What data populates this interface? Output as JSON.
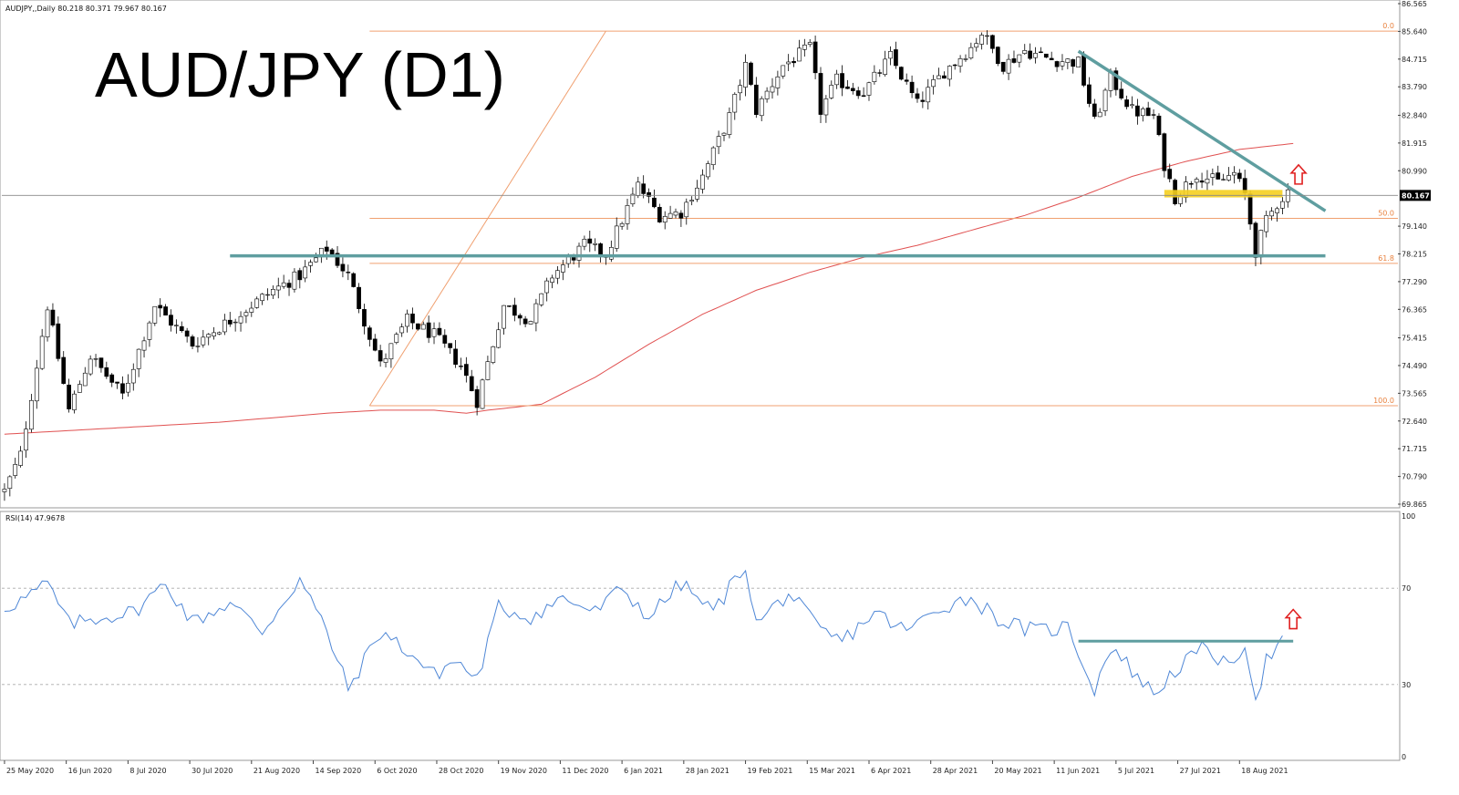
{
  "header": {
    "symbol_line": "AUDJPY,,Daily  80.218 80.371 79.967 80.167",
    "title": "AUD/JPY (D1)",
    "rsi_label": "RSI(14) 47.9678"
  },
  "colors": {
    "up_arrow": "#e02020",
    "trendline": "#5f9ea0",
    "fib": "#f0a070",
    "ma": "#e05050",
    "rsi": "#4f87d6",
    "highlight": "#f5cf1f"
  },
  "chart_data": [
    {
      "type": "candlestick",
      "title": "AUD/JPY (D1)",
      "x_labels": [
        "25 May 2020",
        "16 Jun 2020",
        "8 Jul 2020",
        "30 Jul 2020",
        "21 Aug 2020",
        "14 Sep 2020",
        "6 Oct 2020",
        "28 Oct 2020",
        "19 Nov 2020",
        "11 Dec 2020",
        "6 Jan 2021",
        "28 Jan 2021",
        "19 Feb 2021",
        "15 Mar 2021",
        "6 Apr 2021",
        "28 Apr 2021",
        "20 May 2021",
        "11 Jun 2021",
        "5 Jul 2021",
        "27 Jul 2021",
        "18 Aug 2021"
      ],
      "y_ticks": [
        "86.565",
        "85.640",
        "84.715",
        "83.790",
        "82.840",
        "81.915",
        "80.990",
        "80.167",
        "79.140",
        "78.215",
        "77.290",
        "76.365",
        "75.415",
        "74.490",
        "73.565",
        "72.640",
        "71.715",
        "70.790",
        "69.865"
      ],
      "ylim": [
        69.865,
        86.565
      ],
      "current_price": "80.167",
      "price_path": [
        [
          0,
          70.3
        ],
        [
          3,
          71.5
        ],
        [
          8,
          76.5
        ],
        [
          12,
          73.0
        ],
        [
          16,
          74.8
        ],
        [
          22,
          73.5
        ],
        [
          28,
          76.5
        ],
        [
          35,
          75.2
        ],
        [
          42,
          76.0
        ],
        [
          50,
          77.0
        ],
        [
          55,
          77.5
        ],
        [
          60,
          78.4
        ],
        [
          64,
          77.5
        ],
        [
          70,
          74.5
        ],
        [
          75,
          76.0
        ],
        [
          80,
          75.5
        ],
        [
          85,
          74.5
        ],
        [
          88,
          73.3
        ],
        [
          93,
          76.5
        ],
        [
          98,
          76.0
        ],
        [
          102,
          77.5
        ],
        [
          108,
          78.5
        ],
        [
          112,
          78.2
        ],
        [
          118,
          80.5
        ],
        [
          122,
          79.5
        ],
        [
          126,
          79.6
        ],
        [
          130,
          80.8
        ],
        [
          135,
          82.8
        ],
        [
          138,
          84.5
        ],
        [
          140,
          83.0
        ],
        [
          145,
          84.5
        ],
        [
          150,
          85.1
        ],
        [
          152,
          83.0
        ],
        [
          155,
          84.0
        ],
        [
          160,
          83.6
        ],
        [
          165,
          84.8
        ],
        [
          170,
          83.2
        ],
        [
          175,
          84.3
        ],
        [
          180,
          85.1
        ],
        [
          182,
          85.6
        ],
        [
          186,
          84.5
        ],
        [
          190,
          85.0
        ],
        [
          195,
          84.7
        ],
        [
          200,
          84.6
        ],
        [
          203,
          82.6
        ],
        [
          206,
          84.1
        ],
        [
          210,
          83.0
        ],
        [
          214,
          82.8
        ],
        [
          216,
          81.2
        ],
        [
          218,
          80.1
        ],
        [
          222,
          80.9
        ],
        [
          226,
          80.6
        ],
        [
          229,
          80.9
        ],
        [
          231,
          80.2
        ],
        [
          233,
          78.3
        ],
        [
          235,
          79.3
        ],
        [
          237,
          79.9
        ],
        [
          239,
          80.3
        ]
      ],
      "ma_path": [
        [
          0,
          72.2
        ],
        [
          20,
          72.4
        ],
        [
          40,
          72.6
        ],
        [
          60,
          72.9
        ],
        [
          70,
          73.0
        ],
        [
          80,
          73.0
        ],
        [
          86,
          72.9
        ],
        [
          90,
          73.0
        ],
        [
          100,
          73.2
        ],
        [
          110,
          74.1
        ],
        [
          120,
          75.2
        ],
        [
          130,
          76.2
        ],
        [
          140,
          77.0
        ],
        [
          150,
          77.6
        ],
        [
          160,
          78.1
        ],
        [
          170,
          78.5
        ],
        [
          180,
          79.0
        ],
        [
          190,
          79.5
        ],
        [
          200,
          80.1
        ],
        [
          210,
          80.8
        ],
        [
          220,
          81.3
        ],
        [
          230,
          81.7
        ],
        [
          240,
          81.9
        ]
      ],
      "fib_levels": [
        {
          "label": "0.0",
          "value": 85.65
        },
        {
          "label": "50.0",
          "value": 79.4
        },
        {
          "label": "61.8",
          "value": 77.9
        },
        {
          "label": "100.0",
          "value": 73.15
        }
      ],
      "horizontal_support": 78.15,
      "descending_trendline": [
        [
          84.98,
          200
        ],
        [
          79.65,
          246
        ]
      ],
      "resistance_zone": [
        80.1,
        80.35
      ],
      "up_arrow": "above price near 18 Aug 2021"
    },
    {
      "type": "line",
      "title": "RSI(14) 47.9678",
      "y_ticks": [
        "100",
        "70",
        "30",
        "0"
      ],
      "ylim": [
        0,
        100
      ],
      "levels": [
        70,
        30
      ],
      "rsi_path": [
        [
          0,
          62
        ],
        [
          4,
          66
        ],
        [
          8,
          72
        ],
        [
          12,
          55
        ],
        [
          18,
          58
        ],
        [
          24,
          60
        ],
        [
          30,
          72
        ],
        [
          35,
          56
        ],
        [
          42,
          64
        ],
        [
          48,
          52
        ],
        [
          55,
          74
        ],
        [
          60,
          52
        ],
        [
          64,
          28
        ],
        [
          70,
          52
        ],
        [
          75,
          44
        ],
        [
          80,
          34
        ],
        [
          84,
          40
        ],
        [
          88,
          32
        ],
        [
          92,
          62
        ],
        [
          98,
          58
        ],
        [
          104,
          66
        ],
        [
          110,
          60
        ],
        [
          115,
          70
        ],
        [
          120,
          58
        ],
        [
          126,
          72
        ],
        [
          132,
          60
        ],
        [
          138,
          80
        ],
        [
          140,
          55
        ],
        [
          146,
          68
        ],
        [
          152,
          52
        ],
        [
          156,
          48
        ],
        [
          162,
          60
        ],
        [
          168,
          52
        ],
        [
          174,
          62
        ],
        [
          180,
          66
        ],
        [
          186,
          56
        ],
        [
          192,
          52
        ],
        [
          198,
          54
        ],
        [
          203,
          28
        ],
        [
          206,
          46
        ],
        [
          210,
          36
        ],
        [
          214,
          26
        ],
        [
          218,
          36
        ],
        [
          224,
          46
        ],
        [
          228,
          36
        ],
        [
          231,
          48
        ],
        [
          233,
          24
        ],
        [
          235,
          40
        ],
        [
          238,
          48
        ]
      ],
      "horizontal_resistance": 48
    }
  ]
}
